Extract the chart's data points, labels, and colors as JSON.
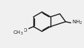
{
  "bg_color": "#f0f0f0",
  "line_color": "#1a1a1a",
  "line_width": 1.0,
  "text_color": "#1a1a1a",
  "fig_width": 1.18,
  "fig_height": 0.68,
  "dpi": 100,
  "font_size": 5.0
}
